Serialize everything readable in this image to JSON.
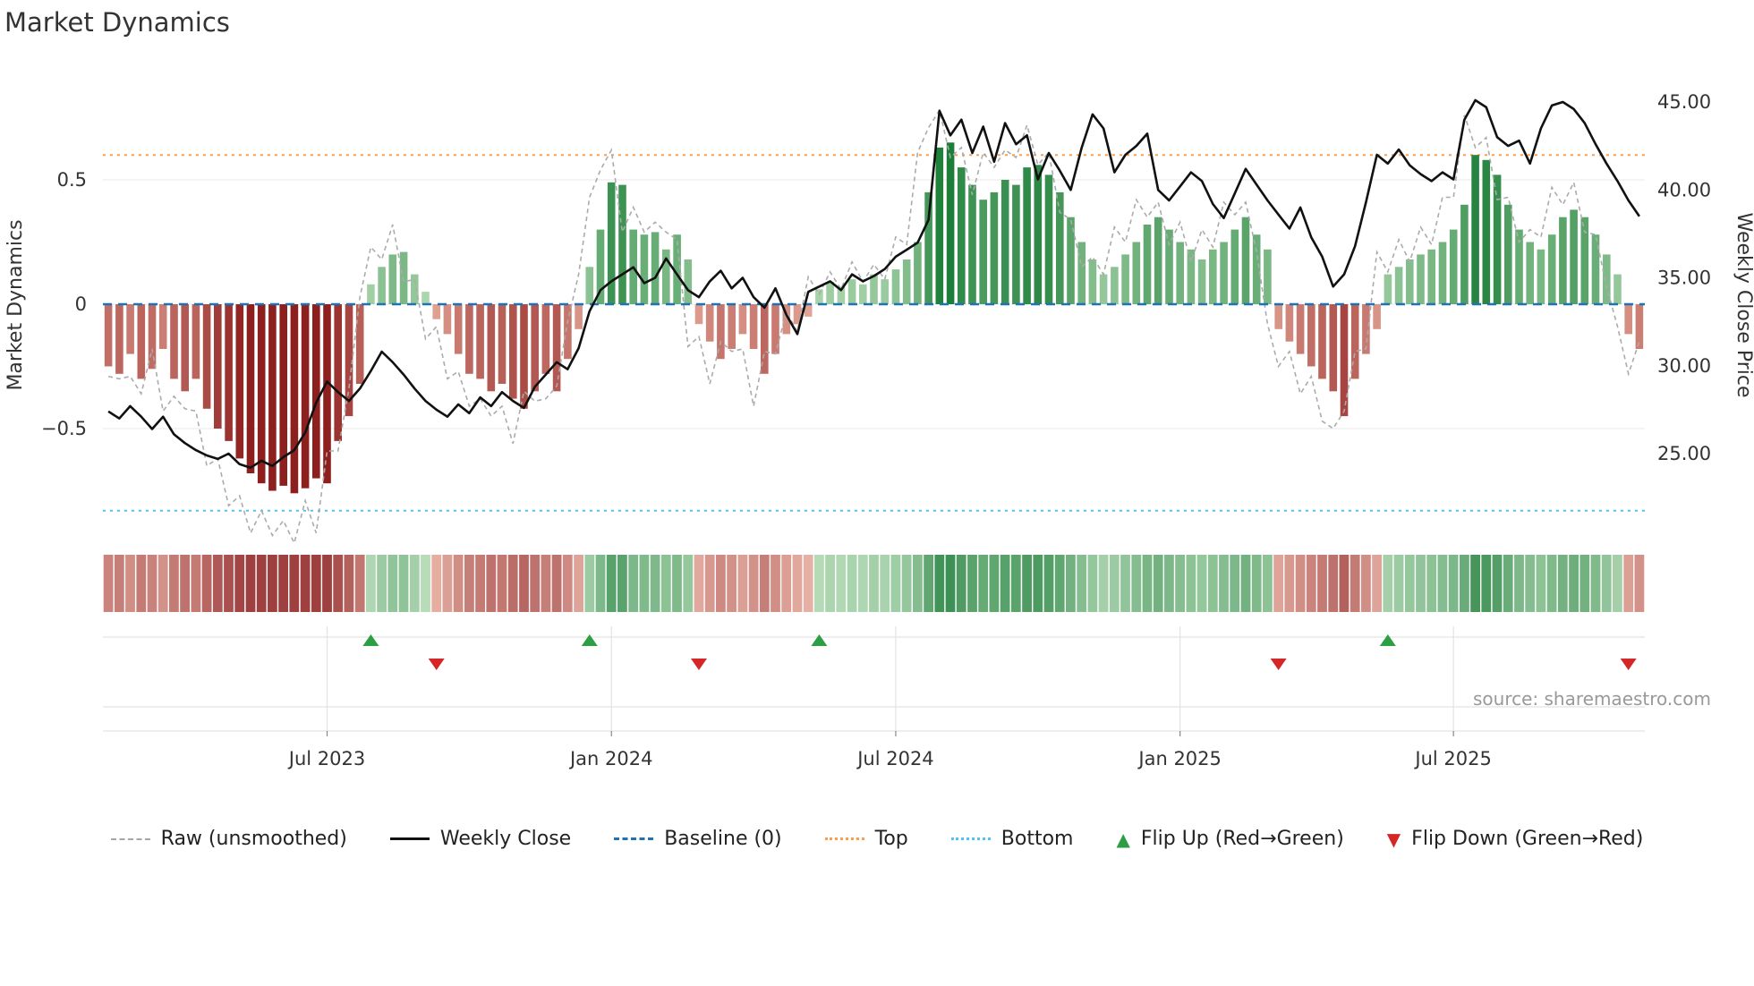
{
  "title": "Market Dynamics",
  "source_note": "source: sharemaestro.com",
  "axes": {
    "left_label": "Market Dynamics",
    "left_ticks": [
      {
        "value": 0.5,
        "label": "0.5"
      },
      {
        "value": 0,
        "label": "0"
      },
      {
        "value": -0.5,
        "label": "−0.5"
      }
    ],
    "right_label": "Weekly Close Price",
    "right_ticks": [
      {
        "value": 45,
        "label": "45.00"
      },
      {
        "value": 40,
        "label": "40.00"
      },
      {
        "value": 35,
        "label": "35.00"
      },
      {
        "value": 30,
        "label": "30.00"
      },
      {
        "value": 25,
        "label": "25.00"
      }
    ],
    "x_ticks": [
      {
        "week": 20,
        "label": "Jul 2023"
      },
      {
        "week": 46,
        "label": "Jan 2024"
      },
      {
        "week": 72,
        "label": "Jul 2024"
      },
      {
        "week": 98,
        "label": "Jan 2025"
      },
      {
        "week": 123,
        "label": "Jul 2025"
      }
    ]
  },
  "legend": {
    "items": [
      {
        "id": "raw",
        "label": "Raw (unsmoothed)",
        "swatch": "raw",
        "icon": "dashed-gray-line-icon"
      },
      {
        "id": "weekly-close",
        "label": "Weekly Close",
        "swatch": "close",
        "icon": "solid-black-line-icon"
      },
      {
        "id": "baseline",
        "label": "Baseline (0)",
        "swatch": "baseline",
        "icon": "dashed-blue-line-icon"
      },
      {
        "id": "top",
        "label": "Top",
        "swatch": "top",
        "icon": "dotted-orange-line-icon"
      },
      {
        "id": "bottom",
        "label": "Bottom",
        "swatch": "bottom",
        "icon": "dotted-cyan-line-icon"
      },
      {
        "id": "flip-up",
        "label": "Flip Up (Red→Green)",
        "swatch": "up",
        "icon": "up-triangle-icon",
        "glyph": "▲"
      },
      {
        "id": "flip-down",
        "label": "Flip Down (Green→Red)",
        "swatch": "down",
        "icon": "down-triangle-icon",
        "glyph": "▼"
      }
    ]
  },
  "colors": {
    "weekly_close": "#111111",
    "raw": "#ababab",
    "baseline": "#2171b5",
    "top": "#ff9e4a",
    "bottom": "#4fc3f7",
    "flip_up": "#2e9e44",
    "flip_down": "#d62728",
    "bar_red_dark": "#8e1f1f",
    "bar_red_light": "#f0b9a8",
    "bar_green_dark": "#1a7d36",
    "bar_green_light": "#c3e4c0",
    "grid": "#e3e3e3",
    "axis_line": "#d0d0d0",
    "tick_mark": "#888888"
  },
  "chart_data": {
    "type": "bar+line combo with heatmap strip and flip markers",
    "title": "Market Dynamics",
    "x_unit": "weeks",
    "n_weeks": 141,
    "x_tick_labels": [
      "Jul 2023",
      "Jan 2024",
      "Jul 2024",
      "Jan 2025",
      "Jul 2025"
    ],
    "x_tick_week_indices": [
      20,
      46,
      72,
      98,
      123
    ],
    "left_axis": {
      "label": "Market Dynamics",
      "ticks": [
        0.5,
        0,
        -0.5
      ],
      "range": [
        -0.95,
        0.95
      ]
    },
    "right_axis": {
      "label": "Weekly Close Price",
      "ticks": [
        45,
        40,
        35,
        30,
        25
      ],
      "range": [
        20,
        47
      ]
    },
    "baseline": 0,
    "top_threshold": 0.6,
    "bottom_threshold": -0.83,
    "grid": "horizontal in main pane, vertical+horizontal in marker pane",
    "legend_position": "bottom center",
    "series": [
      {
        "name": "Oscillator (bars, red/green by sign and intensity)",
        "type": "bar",
        "axis": "left",
        "values": [
          -0.25,
          -0.28,
          -0.2,
          -0.3,
          -0.26,
          -0.18,
          -0.3,
          -0.35,
          -0.3,
          -0.42,
          -0.5,
          -0.55,
          -0.62,
          -0.68,
          -0.72,
          -0.75,
          -0.73,
          -0.76,
          -0.74,
          -0.7,
          -0.72,
          -0.55,
          -0.45,
          -0.32,
          0.08,
          0.15,
          0.2,
          0.21,
          0.12,
          0.05,
          -0.06,
          -0.12,
          -0.2,
          -0.28,
          -0.3,
          -0.35,
          -0.32,
          -0.38,
          -0.42,
          -0.35,
          -0.28,
          -0.35,
          -0.22,
          -0.1,
          0.15,
          0.3,
          0.49,
          0.48,
          0.3,
          0.28,
          0.29,
          0.22,
          0.28,
          0.18,
          -0.08,
          -0.15,
          -0.22,
          -0.18,
          -0.12,
          -0.18,
          -0.28,
          -0.2,
          -0.12,
          -0.08,
          -0.05,
          0.06,
          0.09,
          0.07,
          0.1,
          0.08,
          0.12,
          0.1,
          0.14,
          0.18,
          0.25,
          0.45,
          0.63,
          0.65,
          0.55,
          0.48,
          0.42,
          0.45,
          0.5,
          0.48,
          0.55,
          0.56,
          0.52,
          0.45,
          0.35,
          0.25,
          0.18,
          0.12,
          0.15,
          0.2,
          0.25,
          0.32,
          0.35,
          0.3,
          0.25,
          0.22,
          0.18,
          0.22,
          0.25,
          0.3,
          0.35,
          0.28,
          0.22,
          -0.1,
          -0.15,
          -0.2,
          -0.25,
          -0.3,
          -0.35,
          -0.45,
          -0.3,
          -0.2,
          -0.1,
          0.12,
          0.15,
          0.18,
          0.2,
          0.22,
          0.25,
          0.3,
          0.4,
          0.6,
          0.58,
          0.52,
          0.4,
          0.3,
          0.25,
          0.22,
          0.28,
          0.35,
          0.38,
          0.35,
          0.28,
          0.2,
          0.12,
          -0.12,
          -0.18
        ]
      },
      {
        "name": "Raw (unsmoothed)",
        "type": "line",
        "axis": "left",
        "values": [
          -0.29,
          -0.3,
          -0.29,
          -0.36,
          -0.18,
          -0.43,
          -0.37,
          -0.42,
          -0.43,
          -0.65,
          -0.62,
          -0.81,
          -0.77,
          -0.92,
          -0.83,
          -0.93,
          -0.87,
          -0.96,
          -0.79,
          -0.92,
          -0.59,
          -0.59,
          -0.34,
          0.03,
          0.23,
          0.18,
          0.32,
          0.09,
          0.1,
          -0.14,
          -0.09,
          -0.3,
          -0.27,
          -0.41,
          -0.38,
          -0.45,
          -0.41,
          -0.56,
          -0.35,
          -0.39,
          -0.38,
          -0.33,
          -0.07,
          0.12,
          0.43,
          0.54,
          0.62,
          0.29,
          0.39,
          0.29,
          0.33,
          0.29,
          0.26,
          -0.17,
          -0.13,
          -0.32,
          -0.15,
          -0.19,
          -0.18,
          -0.41,
          -0.19,
          -0.2,
          -0.03,
          -0.11,
          0.11,
          0.04,
          0.13,
          0.06,
          0.17,
          0.09,
          0.16,
          0.1,
          0.27,
          0.24,
          0.61,
          0.71,
          0.78,
          0.59,
          0.63,
          0.44,
          0.61,
          0.55,
          0.62,
          0.59,
          0.72,
          0.56,
          0.61,
          0.37,
          0.34,
          0.15,
          0.19,
          0.12,
          0.31,
          0.25,
          0.42,
          0.35,
          0.41,
          0.24,
          0.33,
          0.17,
          0.3,
          0.23,
          0.41,
          0.36,
          0.41,
          0.21,
          -0.08,
          -0.25,
          -0.19,
          -0.36,
          -0.29,
          -0.47,
          -0.5,
          -0.43,
          -0.19,
          -0.18,
          0.21,
          0.13,
          0.26,
          0.17,
          0.31,
          0.24,
          0.43,
          0.43,
          0.76,
          0.63,
          0.67,
          0.42,
          0.43,
          0.25,
          0.3,
          0.27,
          0.47,
          0.4,
          0.49,
          0.29,
          0.28,
          0.07,
          -0.09,
          -0.28,
          -0.15
        ]
      },
      {
        "name": "Weekly Close",
        "type": "line",
        "axis": "right",
        "values": [
          27.4,
          27.0,
          27.7,
          27.1,
          26.4,
          27.1,
          26.1,
          25.6,
          25.2,
          24.9,
          24.7,
          25.0,
          24.4,
          24.2,
          24.6,
          24.3,
          24.8,
          25.2,
          26.2,
          27.9,
          29.1,
          28.5,
          28.0,
          28.7,
          29.7,
          30.8,
          30.2,
          29.5,
          28.7,
          28.0,
          27.5,
          27.1,
          27.8,
          27.3,
          28.2,
          27.7,
          28.5,
          28.0,
          27.6,
          28.8,
          29.5,
          30.2,
          29.8,
          31.0,
          33.1,
          34.3,
          34.8,
          35.2,
          35.6,
          34.7,
          35.0,
          36.1,
          35.2,
          34.3,
          33.9,
          34.8,
          35.4,
          34.4,
          35.0,
          33.9,
          33.3,
          34.4,
          32.9,
          31.8,
          34.2,
          34.5,
          34.8,
          34.3,
          35.2,
          34.8,
          35.1,
          35.5,
          36.2,
          36.6,
          37.0,
          38.3,
          44.5,
          43.1,
          44.0,
          42.1,
          43.6,
          41.6,
          43.8,
          42.6,
          43.1,
          40.6,
          42.1,
          41.1,
          40.0,
          42.4,
          44.3,
          43.5,
          41.0,
          42.0,
          42.5,
          43.2,
          40.0,
          39.4,
          40.2,
          41.0,
          40.5,
          39.2,
          38.4,
          39.8,
          41.2,
          40.3,
          39.4,
          38.6,
          37.8,
          39.0,
          37.3,
          36.2,
          34.5,
          35.2,
          36.8,
          39.3,
          42.0,
          41.5,
          42.3,
          41.4,
          40.9,
          40.5,
          41.0,
          40.6,
          44.0,
          45.1,
          44.7,
          43.0,
          42.5,
          42.8,
          41.5,
          43.5,
          44.8,
          45.0,
          44.6,
          43.8,
          42.6,
          41.5,
          40.5,
          39.4,
          38.5
        ]
      }
    ],
    "heatmap_strip": "same weekly oscillator values rendered as a color-intensity strip below the main pane",
    "flip_up_weeks": [
      24,
      44,
      65,
      117
    ],
    "flip_down_weeks": [
      30,
      54,
      107,
      139
    ]
  }
}
